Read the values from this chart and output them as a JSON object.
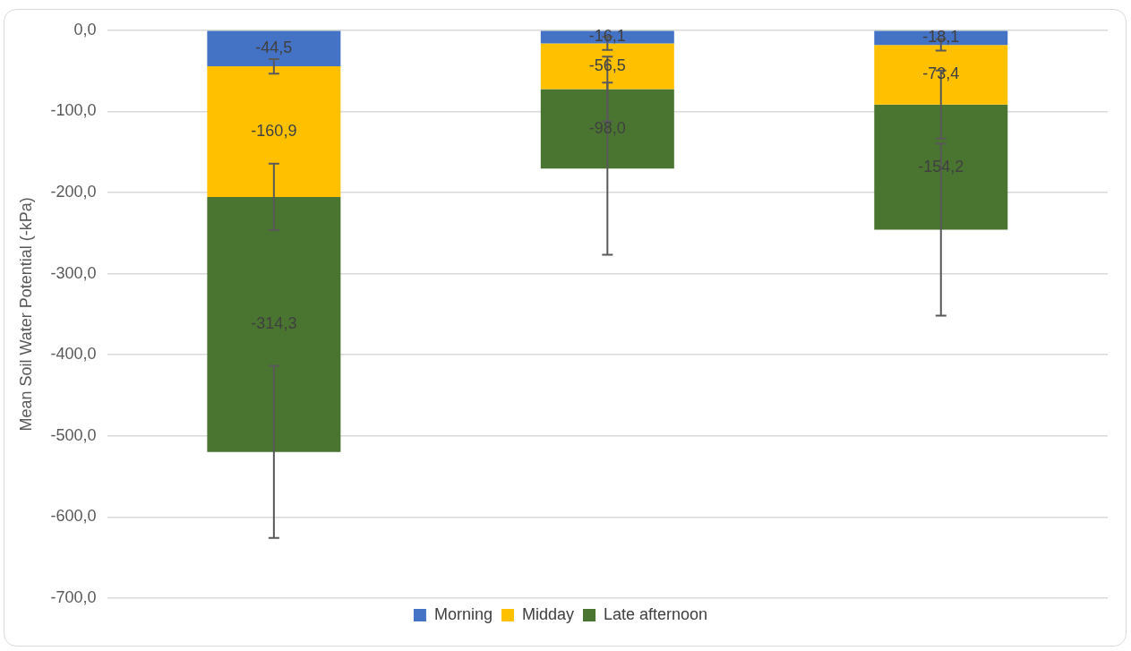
{
  "chart_data": {
    "type": "bar",
    "stacked": true,
    "ylabel": "Mean Soil Water Potential (-kPa)",
    "categories": [
      null,
      null,
      null
    ],
    "series": [
      {
        "name": "Morning",
        "color": "#4472c4",
        "values": [
          -44.5,
          -16.1,
          -18.1
        ],
        "errors": [
          9,
          8,
          7
        ]
      },
      {
        "name": "Midday",
        "color": "#ffc000",
        "values": [
          -160.9,
          -56.5,
          -73.4
        ],
        "errors": [
          41,
          40,
          42
        ]
      },
      {
        "name": "Late afternoon",
        "color": "#4a7530",
        "values": [
          -314.3,
          -98.0,
          -154.2
        ],
        "errors": [
          106,
          106,
          106
        ]
      }
    ],
    "value_labels": [
      [
        "-44,5",
        "-16,1",
        "-18,1"
      ],
      [
        "-160,9",
        "-56,5",
        "-73,4"
      ],
      [
        "-314,3",
        "-98,0",
        "-154,2"
      ]
    ],
    "ylim": [
      -700,
      0
    ],
    "yticks": [
      {
        "value": 0,
        "label": "0,0"
      },
      {
        "value": -100,
        "label": "-100,0"
      },
      {
        "value": -200,
        "label": "-200,0"
      },
      {
        "value": -300,
        "label": "-300,0"
      },
      {
        "value": -400,
        "label": "-400,0"
      },
      {
        "value": -500,
        "label": "-500,0"
      },
      {
        "value": -600,
        "label": "-600,0"
      },
      {
        "value": -700,
        "label": "-700,0"
      }
    ],
    "grid": "y",
    "legend": "bottom",
    "tick_labels": "y"
  }
}
